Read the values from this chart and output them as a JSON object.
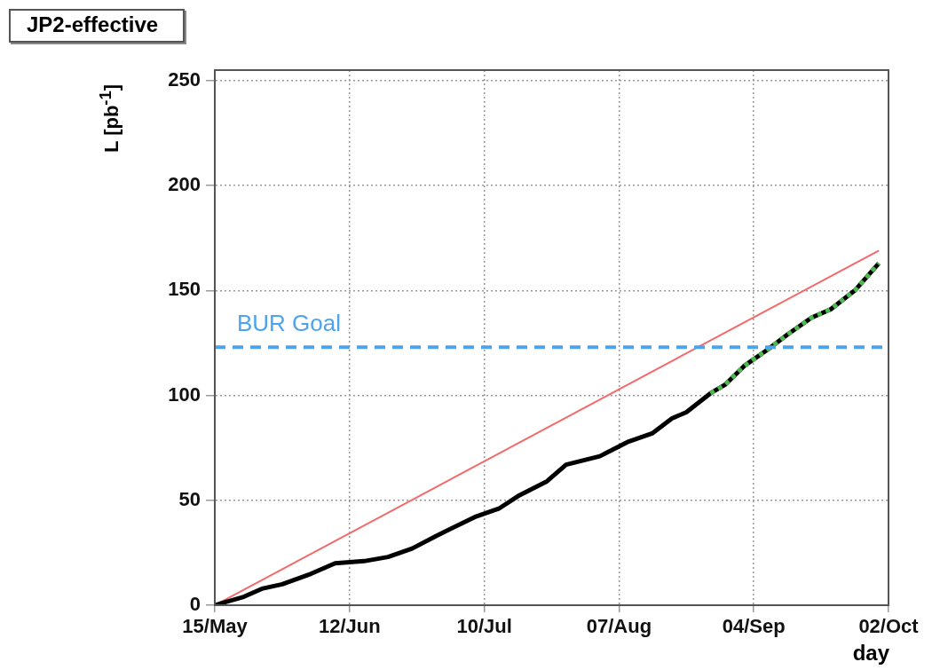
{
  "chart_data": {
    "type": "line",
    "title": "JP2-effective",
    "xlabel": "day",
    "ylabel": "L [pb$^{-1}$]",
    "xlim": [
      "--05-15",
      "--10-02"
    ],
    "xticks": [
      {
        "value": "--05-15",
        "label": "15/May"
      },
      {
        "value": "--06-12",
        "label": "12/Jun"
      },
      {
        "value": "--07-10",
        "label": "10/Jul"
      },
      {
        "value": "--08-07",
        "label": "07/Aug"
      },
      {
        "value": "--09-04",
        "label": "04/Sep"
      },
      {
        "value": "--10-02",
        "label": "02/Oct"
      }
    ],
    "ylim": [
      0,
      255
    ],
    "yticks": [
      0,
      50,
      100,
      150,
      200,
      250
    ],
    "grid": true,
    "legend": false,
    "series": [
      {
        "color": "#f26a6a",
        "line_style": "solid",
        "x": [
          "--05-15",
          "--09-30"
        ],
        "values": [
          0,
          169
        ]
      },
      {
        "color": "#000000",
        "line_style": "solid",
        "x": [
          "--05-15",
          "--05-21",
          "--05-25",
          "--05-29",
          "--06-04",
          "--06-09",
          "--06-15",
          "--06-20",
          "--06-25",
          "--06-30",
          "--07-08",
          "--07-13",
          "--07-17",
          "--07-23",
          "--07-27",
          "--08-03",
          "--08-09",
          "--08-14",
          "--08-18",
          "--08-21",
          "--08-26",
          "--08-29",
          "--09-02",
          "--09-07",
          "--09-11",
          "--09-16",
          "--09-20",
          "--09-25",
          "--09-30"
        ],
        "values": [
          0,
          4,
          8,
          10,
          15,
          20,
          21,
          23,
          27,
          33,
          42,
          46,
          52,
          59,
          67,
          71,
          78,
          82,
          89,
          92,
          101,
          105,
          114,
          122,
          129,
          137,
          141,
          150,
          163
        ]
      },
      {
        "color": "#4cbb4c",
        "line_style": "dotted",
        "x": [
          "--08-26",
          "--08-29",
          "--09-02",
          "--09-07",
          "--09-11",
          "--09-16",
          "--09-20",
          "--09-25",
          "--09-30"
        ],
        "values": [
          101,
          105,
          114,
          122,
          129,
          137,
          141,
          150,
          163
        ]
      }
    ],
    "ref_lines": [
      {
        "axis": "y",
        "value": 123,
        "label": "BUR Goal",
        "color": "#4da3ee",
        "line_style": "dashed"
      }
    ]
  }
}
